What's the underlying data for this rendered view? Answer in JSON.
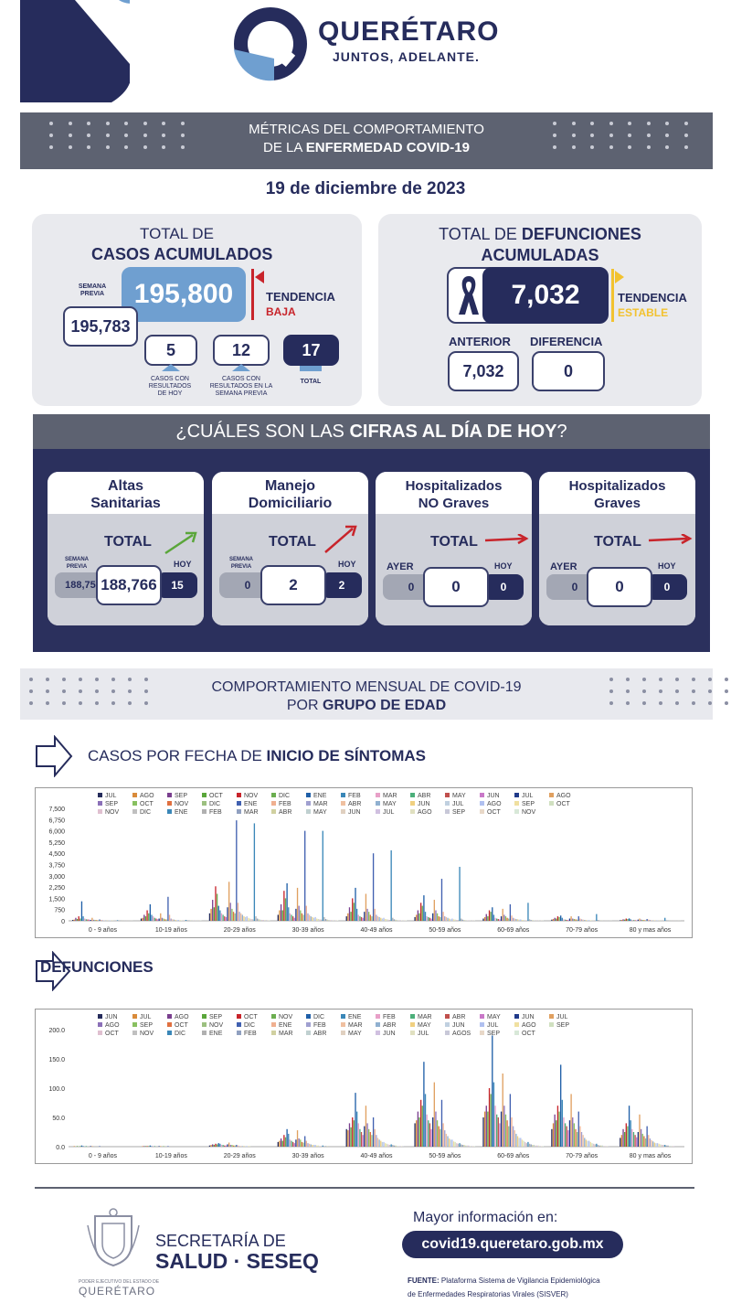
{
  "header": {
    "state_name": "QUERÉTARO",
    "slogan": "JUNTOS, ADELANTE."
  },
  "banner1": {
    "line1": "MÉTRICAS DEL COMPORTAMIENTO",
    "line2_pre": "DE LA ",
    "line2_bold": "ENFERMEDAD COVID-19"
  },
  "date": "19 de diciembre de 2023",
  "cases": {
    "title_line1": "TOTAL DE",
    "title_line2": "CASOS ACUMULADOS",
    "previous_label": "SEMANA PREVIA",
    "previous_value": "195,783",
    "total_value": "195,800",
    "trend_label": "TENDENCIA",
    "trend_value": "BAJA",
    "today_value": "5",
    "today_label": "CASOS CON RESULTADOS DE HOY",
    "week_value": "12",
    "week_label": "CASOS CON RESULTADOS EN LA SEMANA PREVIA",
    "sum_value": "17",
    "sum_label": "TOTAL"
  },
  "deaths": {
    "title_pre": "TOTAL DE ",
    "title_bold1": "DEFUNCIONES",
    "title_line2": "ACUMULADAS",
    "total_value": "7,032",
    "trend_label": "TENDENCIA",
    "trend_value": "ESTABLE",
    "previous_label": "ANTERIOR",
    "previous_value": "7,032",
    "diff_label": "DIFERENCIA",
    "diff_value": "0"
  },
  "today_section": {
    "title_pre": "¿CUÁLES SON LAS ",
    "title_bold": "CIFRAS AL DÍA DE HOY",
    "title_post": "?"
  },
  "panels": [
    {
      "title1": "Altas",
      "title2": "Sanitarias",
      "total_label": "TOTAL",
      "prev_label": "SEMANA PREVIA",
      "prev": "188,751",
      "value": "188,766",
      "today_label": "HOY",
      "today": "15"
    },
    {
      "title1": "Manejo",
      "title2": "Domiciliario",
      "total_label": "TOTAL",
      "prev_label": "SEMANA PREVIA",
      "prev": "0",
      "value": "2",
      "today_label": "HOY",
      "today": "2"
    },
    {
      "title1": "Hospitalizados",
      "title2": "NO Graves",
      "total_label": "TOTAL",
      "prev_label": "AYER",
      "prev": "0",
      "value": "0",
      "today_label": "HOY",
      "today": "0"
    },
    {
      "title1": "Hospitalizados",
      "title2": "Graves",
      "total_label": "TOTAL",
      "prev_label": "AYER",
      "prev": "0",
      "value": "0",
      "today_label": "HOY",
      "today": "0"
    }
  ],
  "banner2": {
    "line1": "COMPORTAMIENTO MENSUAL DE COVID-19",
    "line2_pre": "POR ",
    "line2_bold": "GRUPO DE EDAD"
  },
  "section_cases": {
    "pre": "CASOS POR FECHA DE ",
    "bold": "INICIO  DE SÍNTOMAS"
  },
  "section_deaths": {
    "bold": "DEFUNCIONES"
  },
  "footer": {
    "sec_line1": "SECRETARÍA DE",
    "sec_line2": "SALUD · SESEQ",
    "crest_small": "PODER EJECUTIVO DEL ESTADO DE",
    "crest_name": "QUERÉTARO",
    "more_info": "Mayor información en:",
    "url": "covid19.queretaro.gob.mx",
    "source_bold": "FUENTE:",
    "source_text": " Plataforma Sistema  de Vigilancia Epidemiológica",
    "source_text2": "de Enfermedades Respiratorias Virales (SISVER)"
  },
  "colors": {
    "navy": "#262c5c",
    "sky": "#6f9fd0",
    "red": "#c8242b",
    "yellow": "#f2c230",
    "green": "#5aa63a",
    "grey": "#5d6271"
  },
  "chart_data": [
    {
      "type": "bar",
      "categories": [
        "0 - 9 años",
        "10-19 años",
        "20-29 años",
        "30-39 años",
        "40-49 años",
        "50-59 años",
        "60-69 años",
        "70-79 años",
        "80 y mas años"
      ],
      "yticks": [
        "0",
        "750",
        "1,500",
        "2,250",
        "3,000",
        "3,750",
        "4,500",
        "5,250",
        "6,000",
        "6,750",
        "7,500"
      ],
      "ylim": [
        0,
        7500
      ],
      "legend": [
        "JUL",
        "AGO",
        "SEP",
        "OCT",
        "NOV",
        "DIC",
        "ENE",
        "FEB",
        "MAR",
        "ABR",
        "MAY",
        "JUN",
        "JUL",
        "AGO",
        "SEP",
        "OCT",
        "NOV",
        "DIC",
        "ENE",
        "FEB",
        "MAR",
        "ABR",
        "MAY",
        "JUN",
        "JUL",
        "AGO",
        "SEP",
        "OCT",
        "NOV",
        "DIC",
        "ENE",
        "FEB",
        "MAR",
        "ABR",
        "MAY",
        "JUN",
        "JUL",
        "AGO",
        "SEP",
        "OCT",
        "NOV"
      ],
      "peaks": [
        {
          "values": [
            60,
            80,
            200,
            120,
            300,
            150,
            1300,
            300,
            150,
            100,
            90,
            80,
            60,
            200,
            70,
            60,
            50,
            40,
            90,
            60,
            40,
            30,
            30,
            20,
            20,
            30,
            20,
            20,
            10,
            10,
            40,
            20,
            10,
            10,
            10,
            10,
            10,
            10,
            10,
            10,
            10
          ]
        },
        {
          "values": [
            150,
            200,
            400,
            300,
            700,
            500,
            1100,
            400,
            300,
            200,
            150,
            100,
            150,
            500,
            200,
            150,
            100,
            90,
            1600,
            400,
            150,
            100,
            80,
            60,
            50,
            60,
            40,
            30,
            20,
            20,
            60,
            40,
            20,
            20,
            20,
            20,
            20,
            20,
            20,
            20,
            20
          ]
        },
        {
          "values": [
            500,
            800,
            1400,
            900,
            2300,
            1800,
            1000,
            700,
            500,
            400,
            300,
            250,
            900,
            2600,
            1200,
            800,
            600,
            500,
            6700,
            1200,
            600,
            500,
            400,
            300,
            250,
            300,
            200,
            150,
            120,
            100,
            6500,
            300,
            150,
            100,
            80,
            60,
            60,
            50,
            50,
            40,
            40
          ]
        },
        {
          "values": [
            400,
            700,
            1100,
            700,
            2000,
            1500,
            2500,
            900,
            500,
            400,
            300,
            200,
            800,
            2200,
            1000,
            700,
            500,
            400,
            6000,
            1000,
            500,
            400,
            300,
            250,
            200,
            250,
            150,
            120,
            100,
            80,
            6000,
            250,
            120,
            80,
            60,
            50,
            40,
            40,
            40,
            30,
            30
          ]
        },
        {
          "values": [
            300,
            500,
            900,
            600,
            1500,
            1200,
            2200,
            800,
            400,
            300,
            250,
            200,
            600,
            1800,
            800,
            600,
            400,
            300,
            4500,
            800,
            400,
            300,
            250,
            200,
            150,
            200,
            120,
            100,
            80,
            60,
            4700,
            200,
            100,
            70,
            50,
            40,
            40,
            30,
            30,
            30,
            30
          ]
        },
        {
          "values": [
            250,
            400,
            700,
            500,
            1200,
            1000,
            1700,
            600,
            300,
            250,
            200,
            150,
            500,
            1400,
            700,
            500,
            300,
            250,
            2800,
            600,
            300,
            250,
            200,
            150,
            100,
            150,
            100,
            80,
            60,
            50,
            3600,
            150,
            80,
            50,
            40,
            30,
            30,
            20,
            20,
            20,
            20
          ]
        },
        {
          "values": [
            150,
            250,
            450,
            300,
            700,
            600,
            900,
            400,
            200,
            150,
            120,
            100,
            300,
            800,
            400,
            300,
            200,
            150,
            1100,
            350,
            200,
            150,
            120,
            100,
            80,
            90,
            60,
            50,
            40,
            30,
            1200,
            100,
            50,
            40,
            30,
            20,
            20,
            20,
            20,
            20,
            20
          ]
        },
        {
          "values": [
            80,
            120,
            200,
            150,
            300,
            250,
            350,
            200,
            100,
            80,
            60,
            50,
            150,
            300,
            150,
            120,
            100,
            80,
            300,
            150,
            100,
            80,
            60,
            50,
            40,
            45,
            30,
            25,
            20,
            15,
            450,
            60,
            30,
            20,
            15,
            10,
            10,
            10,
            10,
            10,
            10
          ]
        },
        {
          "values": [
            40,
            60,
            100,
            80,
            150,
            120,
            160,
            100,
            60,
            50,
            40,
            30,
            80,
            150,
            80,
            60,
            50,
            40,
            120,
            80,
            60,
            40,
            30,
            30,
            20,
            25,
            20,
            15,
            10,
            10,
            200,
            40,
            20,
            10,
            10,
            10,
            10,
            10,
            10,
            10,
            10
          ]
        }
      ]
    },
    {
      "type": "bar",
      "categories": [
        "0 - 9 años",
        "10-19 años",
        "20-29 años",
        "30-39 años",
        "40-49 años",
        "50-59 años",
        "60-69 años",
        "70-79 años",
        "80 y mas años"
      ],
      "yticks": [
        "0.0",
        "50.0",
        "100.0",
        "150.0",
        "200.0"
      ],
      "ylim": [
        0,
        200
      ],
      "legend": [
        "JUN",
        "JUL",
        "AGO",
        "SEP",
        "OCT",
        "NOV",
        "DIC",
        "ENE",
        "FEB",
        "MAR",
        "ABR",
        "MAY",
        "JUN",
        "JUL",
        "AGO",
        "SEP",
        "OCT",
        "NOV",
        "DIC",
        "ENE",
        "FEB",
        "MAR",
        "ABR",
        "MAY",
        "JUN",
        "JUL",
        "AGO",
        "SEP",
        "OCT",
        "NOV",
        "DIC",
        "ENE",
        "FEB",
        "MAR",
        "ABR",
        "MAY",
        "JUN",
        "JUL",
        "AGOS",
        "SEP",
        "OCT"
      ],
      "peaks": [
        {
          "values": [
            0,
            1,
            0,
            1,
            0,
            1,
            2,
            1,
            0,
            1,
            0,
            0,
            1,
            1,
            0,
            0,
            0,
            0,
            1,
            0,
            0,
            0,
            0,
            0,
            0,
            0,
            0,
            0,
            0,
            0,
            0,
            0,
            0,
            0,
            0,
            0,
            0,
            0,
            0,
            0,
            0
          ]
        },
        {
          "values": [
            0,
            1,
            1,
            1,
            1,
            1,
            2,
            1,
            1,
            1,
            0,
            0,
            1,
            1,
            0,
            1,
            0,
            0,
            1,
            0,
            0,
            0,
            0,
            0,
            0,
            0,
            0,
            0,
            0,
            0,
            0,
            0,
            0,
            0,
            0,
            0,
            0,
            0,
            0,
            0,
            0
          ]
        },
        {
          "values": [
            2,
            3,
            4,
            3,
            5,
            4,
            6,
            5,
            3,
            3,
            2,
            2,
            4,
            7,
            3,
            3,
            2,
            2,
            3,
            2,
            1,
            1,
            1,
            1,
            1,
            1,
            1,
            1,
            0,
            0,
            0,
            0,
            0,
            0,
            0,
            0,
            0,
            0,
            0,
            0,
            0
          ]
        },
        {
          "values": [
            8,
            10,
            14,
            10,
            20,
            16,
            30,
            22,
            12,
            10,
            8,
            6,
            12,
            28,
            14,
            12,
            8,
            7,
            18,
            10,
            6,
            5,
            4,
            3,
            3,
            3,
            2,
            2,
            1,
            1,
            2,
            1,
            1,
            1,
            0,
            0,
            0,
            0,
            0,
            0,
            0
          ]
        },
        {
          "values": [
            30,
            28,
            40,
            33,
            50,
            45,
            92,
            60,
            40,
            30,
            25,
            20,
            35,
            70,
            40,
            30,
            25,
            20,
            50,
            30,
            20,
            15,
            12,
            10,
            8,
            8,
            6,
            5,
            4,
            3,
            4,
            3,
            2,
            2,
            1,
            1,
            1,
            1,
            1,
            0,
            0
          ]
        },
        {
          "values": [
            40,
            45,
            60,
            50,
            80,
            70,
            145,
            90,
            55,
            45,
            40,
            30,
            50,
            110,
            60,
            45,
            35,
            30,
            80,
            40,
            28,
            22,
            18,
            14,
            12,
            12,
            9,
            8,
            6,
            5,
            6,
            4,
            3,
            3,
            2,
            2,
            2,
            1,
            1,
            1,
            1
          ]
        },
        {
          "values": [
            50,
            60,
            70,
            60,
            100,
            90,
            190,
            110,
            70,
            55,
            50,
            40,
            60,
            125,
            70,
            55,
            45,
            35,
            90,
            50,
            35,
            28,
            22,
            18,
            15,
            15,
            12,
            10,
            8,
            6,
            8,
            5,
            4,
            3,
            3,
            2,
            2,
            2,
            1,
            1,
            1
          ]
        },
        {
          "values": [
            30,
            40,
            55,
            45,
            70,
            60,
            140,
            80,
            50,
            40,
            35,
            28,
            45,
            90,
            50,
            40,
            30,
            25,
            60,
            35,
            25,
            20,
            15,
            12,
            10,
            10,
            8,
            6,
            5,
            4,
            5,
            3,
            2,
            2,
            2,
            1,
            1,
            1,
            1,
            0,
            0
          ]
        },
        {
          "values": [
            15,
            20,
            30,
            25,
            40,
            35,
            70,
            45,
            30,
            25,
            20,
            16,
            25,
            55,
            30,
            22,
            18,
            14,
            35,
            20,
            14,
            11,
            9,
            7,
            6,
            6,
            5,
            4,
            3,
            3,
            3,
            2,
            2,
            1,
            1,
            1,
            1,
            0,
            0,
            0,
            0
          ]
        }
      ]
    }
  ]
}
